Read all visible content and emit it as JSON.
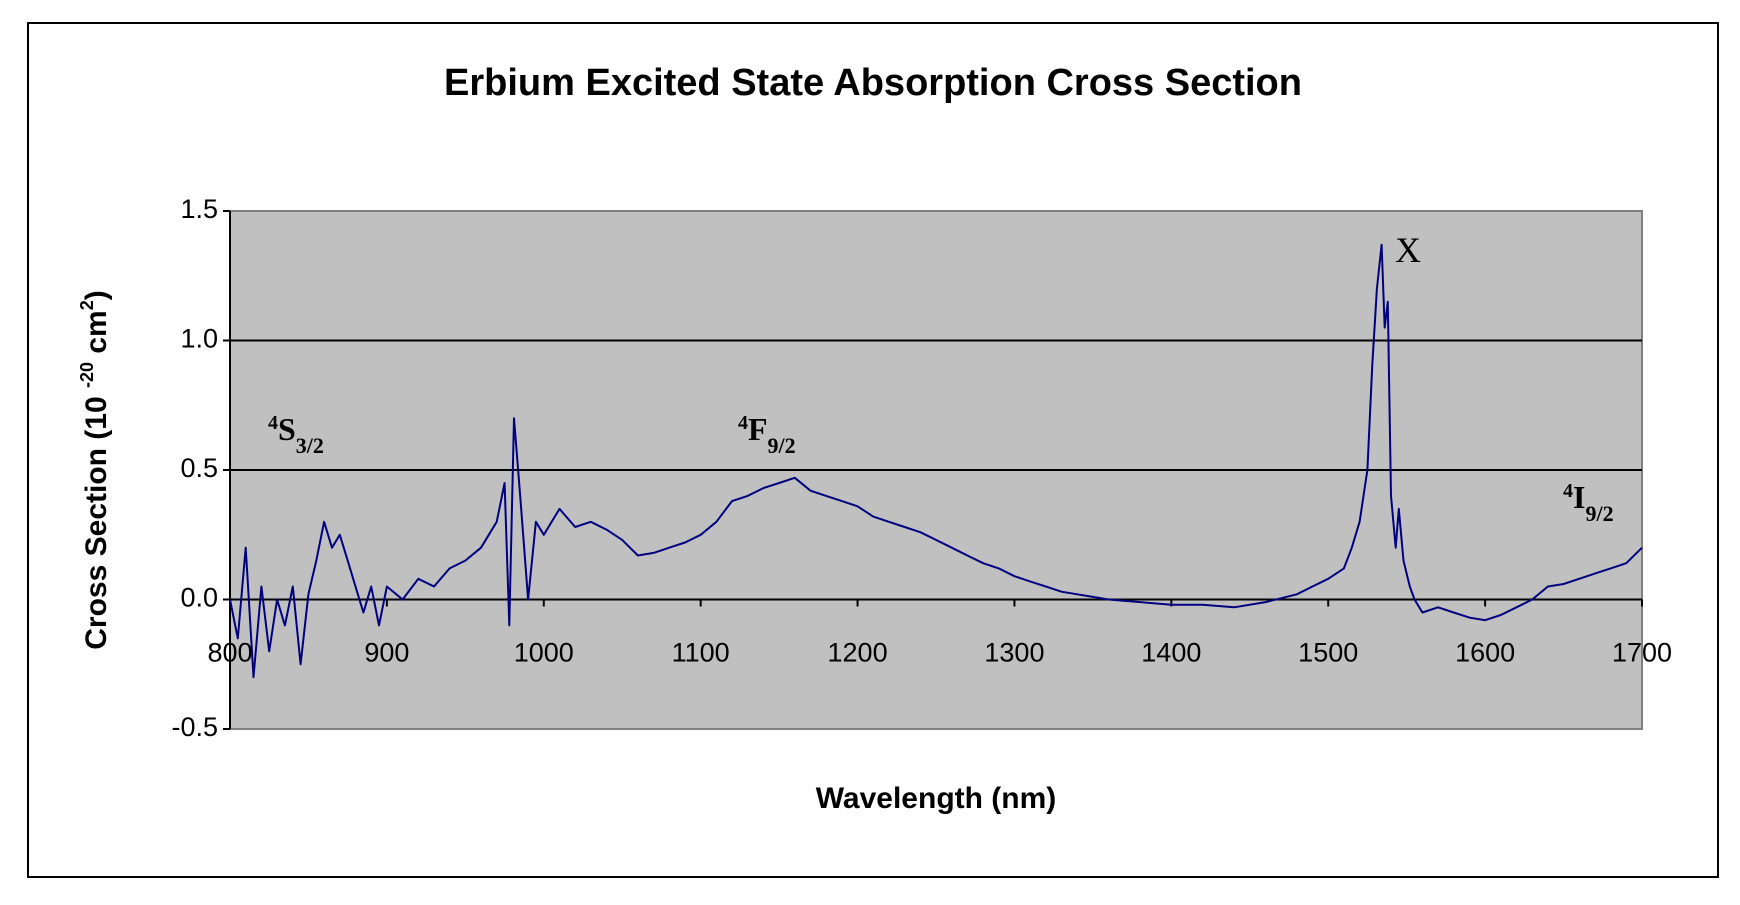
{
  "chart_data": {
    "type": "line",
    "title": "Erbium Excited State Absorption Cross Section",
    "xlabel": "Wavelength (nm)",
    "ylabel_parts": [
      {
        "text": "Cross Section (10 "
      },
      {
        "text": "-20",
        "sup": true
      },
      {
        "text": " cm"
      },
      {
        "text": "2",
        "sup": true
      },
      {
        "text": ")"
      }
    ],
    "annotations": [
      {
        "sup": "4",
        "main": "S",
        "sub": "3/2"
      },
      {
        "sup": "4",
        "main": "F",
        "sub": "9/2"
      },
      {
        "main": "X"
      },
      {
        "sup": "4",
        "main": "I",
        "sub": "9/2"
      }
    ],
    "xlim": [
      800,
      1700
    ],
    "xticks": [
      800,
      900,
      1000,
      1100,
      1200,
      1300,
      1400,
      1500,
      1600,
      1700
    ],
    "ylim": [
      -0.5,
      1.5
    ],
    "yticks": [
      -0.5,
      {
        "value": 0,
        "label": "0.0"
      },
      0.5,
      {
        "value": 1,
        "label": "1.0"
      },
      1.5
    ],
    "grid": true,
    "series": [
      {
        "color": "#000080",
        "x": [
          800,
          805,
          810,
          815,
          820,
          825,
          830,
          835,
          840,
          845,
          850,
          855,
          860,
          865,
          870,
          875,
          880,
          885,
          890,
          895,
          900,
          910,
          920,
          930,
          940,
          950,
          960,
          970,
          975,
          978,
          981,
          985,
          990,
          995,
          1000,
          1010,
          1020,
          1030,
          1040,
          1050,
          1060,
          1070,
          1080,
          1090,
          1100,
          1110,
          1120,
          1130,
          1140,
          1150,
          1160,
          1170,
          1180,
          1190,
          1200,
          1210,
          1220,
          1230,
          1240,
          1250,
          1260,
          1270,
          1280,
          1290,
          1300,
          1310,
          1320,
          1330,
          1340,
          1350,
          1360,
          1380,
          1400,
          1420,
          1440,
          1460,
          1480,
          1490,
          1500,
          1510,
          1515,
          1520,
          1525,
          1528,
          1531,
          1534,
          1536,
          1538,
          1540,
          1543,
          1545,
          1548,
          1552,
          1555,
          1560,
          1570,
          1580,
          1590,
          1600,
          1610,
          1620,
          1630,
          1640,
          1650,
          1660,
          1670,
          1680,
          1690,
          1700
        ],
        "values": [
          0.0,
          -0.15,
          0.2,
          -0.3,
          0.05,
          -0.2,
          0.0,
          -0.1,
          0.05,
          -0.25,
          0.02,
          0.15,
          0.3,
          0.2,
          0.25,
          0.15,
          0.05,
          -0.05,
          0.05,
          -0.1,
          0.05,
          0.0,
          0.08,
          0.05,
          0.12,
          0.15,
          0.2,
          0.3,
          0.45,
          -0.1,
          0.7,
          0.4,
          0.0,
          0.3,
          0.25,
          0.35,
          0.28,
          0.3,
          0.27,
          0.23,
          0.17,
          0.18,
          0.2,
          0.22,
          0.25,
          0.3,
          0.38,
          0.4,
          0.43,
          0.45,
          0.47,
          0.42,
          0.4,
          0.38,
          0.36,
          0.32,
          0.3,
          0.28,
          0.26,
          0.23,
          0.2,
          0.17,
          0.14,
          0.12,
          0.09,
          0.07,
          0.05,
          0.03,
          0.02,
          0.01,
          0.0,
          -0.01,
          -0.02,
          -0.02,
          -0.03,
          -0.01,
          0.02,
          0.05,
          0.08,
          0.12,
          0.2,
          0.3,
          0.5,
          0.9,
          1.2,
          1.37,
          1.05,
          1.15,
          0.4,
          0.2,
          0.35,
          0.15,
          0.05,
          0.0,
          -0.05,
          -0.03,
          -0.05,
          -0.07,
          -0.08,
          -0.06,
          -0.03,
          0.0,
          0.05,
          0.06,
          0.08,
          0.1,
          0.12,
          0.14,
          0.2
        ]
      }
    ]
  }
}
